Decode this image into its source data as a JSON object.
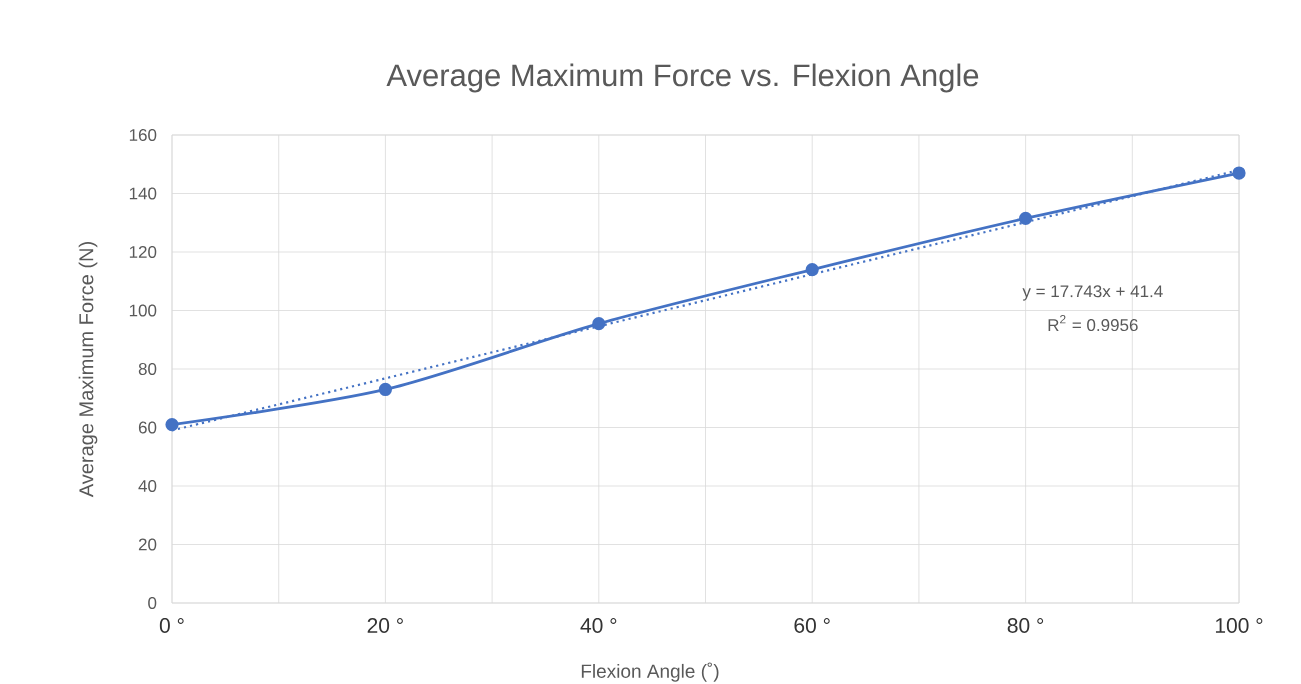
{
  "chart_data": {
    "type": "line",
    "title": "Average Maximum Force vs. Flexion Angle",
    "xlabel": "Flexion Angle (˚)",
    "ylabel": "Average Maximum Force (N)",
    "annotations": [
      "y = 17.743x + 41.4",
      "R$^{2}$ = 0.9956"
    ],
    "series": [
      {
        "x": [
          0,
          20,
          40,
          60,
          80,
          100
        ],
        "values": [
          61,
          73,
          95.5,
          114,
          131.5,
          147
        ],
        "color": "#4472c4",
        "marker": "circle",
        "line_style": "solid"
      },
      {
        "type": "line",
        "x": [
          0,
          100
        ],
        "values": [
          59,
          148
        ],
        "color": "#4472c4",
        "marker": "none",
        "line_style": "dotted"
      }
    ],
    "xlim": [
      0,
      100
    ],
    "ylim": [
      0,
      160
    ],
    "xticks": [
      {
        "value": 0,
        "label": "0 °"
      },
      {
        "value": 10,
        "label": null
      },
      {
        "value": 20,
        "label": "20 °"
      },
      {
        "value": 30,
        "label": null
      },
      {
        "value": 40,
        "label": "40 °"
      },
      {
        "value": 50,
        "label": null
      },
      {
        "value": 60,
        "label": "60 °"
      },
      {
        "value": 70,
        "label": null
      },
      {
        "value": 80,
        "label": "80 °"
      },
      {
        "value": 90,
        "label": null
      },
      {
        "value": 100,
        "label": "100 °"
      }
    ],
    "yticks": [
      0,
      20,
      40,
      60,
      80,
      100,
      120,
      140,
      160
    ],
    "grid": true
  }
}
